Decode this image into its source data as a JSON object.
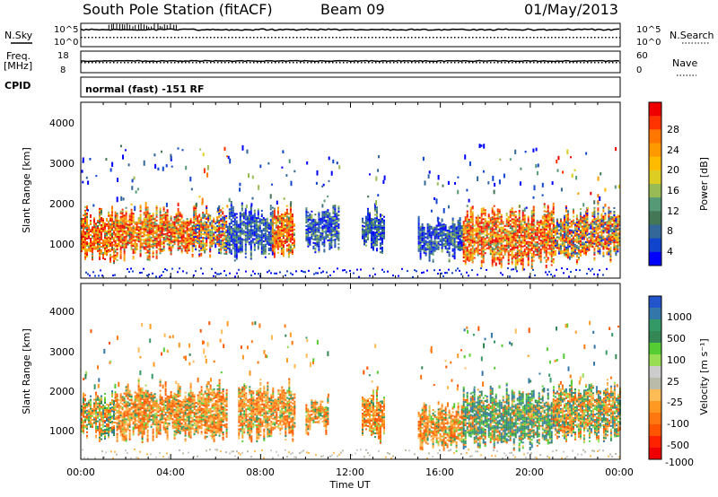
{
  "header": {
    "station": "South Pole Station (fitACF)",
    "beam": "Beam 09",
    "date": "01/May/2013"
  },
  "top_panels": {
    "nsky_label": "N.Sky",
    "nsearch_label": "N.Search",
    "noise_ticks_left": [
      "10^5",
      "10^0"
    ],
    "noise_ticks_right": [
      "10^5",
      "10^0"
    ],
    "freq_label_1": "Freq.",
    "freq_label_2": "[MHz]",
    "freq_ticks": [
      "18",
      "8"
    ],
    "nave_label": "Nave",
    "nave_ticks": [
      "60",
      "0"
    ],
    "cpid_label": "CPID",
    "cpid_text": "normal (fast) -151 RF"
  },
  "power_panel": {
    "ylabel": "Slant Range [km]",
    "yticks": [
      "4000",
      "3000",
      "2000",
      "1000"
    ],
    "colorbar_label": "Power [dB]",
    "colorbar_ticks": [
      "28",
      "24",
      "20",
      "16",
      "12",
      "8",
      "4"
    ],
    "colorbar_colors": [
      "#ee0000",
      "#ff3300",
      "#ff7700",
      "#ff9900",
      "#ffbb00",
      "#ddcc22",
      "#99bb55",
      "#559977",
      "#447755",
      "#336699",
      "#1144cc",
      "#0000ff"
    ]
  },
  "velocity_panel": {
    "ylabel": "Slant Range [km]",
    "yticks": [
      "4000",
      "3000",
      "2000",
      "1000"
    ],
    "colorbar_label": "Velocity [m s⁻¹]",
    "colorbar_ticks": [
      "1000",
      "500",
      "100",
      "25",
      "-25",
      "-100",
      "-500",
      "-1000"
    ],
    "colorbar_colors": [
      "#2255cc",
      "#3377aa",
      "#339966",
      "#338855",
      "#55cc33",
      "#99dd55",
      "#cccccc",
      "#bbbbaa",
      "#ffbb55",
      "#ff9922",
      "#ff7711",
      "#ff5500",
      "#ff2200",
      "#ee0000"
    ]
  },
  "x_axis": {
    "ticks": [
      "00:00",
      "04:00",
      "08:00",
      "12:00",
      "16:00",
      "20:00",
      "00:00"
    ],
    "label": "Time UT"
  },
  "chart_data": {
    "type": "heatmap",
    "title": "South Pole Station (fitACF)",
    "subtitle": "Beam 09",
    "date": "01/May/2013",
    "x_unit": "UT hours",
    "xlim": [
      0,
      24
    ],
    "ylim": [
      180,
      4500
    ],
    "ylabel": "Slant Range [km]",
    "panels": [
      {
        "name": "Power [dB]",
        "scale": [
          0,
          30
        ],
        "blobs": [
          {
            "t0": 0.0,
            "t1": 1.5,
            "r0": 600,
            "r1": 1800,
            "level": "high"
          },
          {
            "t0": 1.5,
            "t1": 5.0,
            "r0": 700,
            "r1": 1900,
            "level": "high"
          },
          {
            "t0": 5.0,
            "t1": 6.5,
            "r0": 800,
            "r1": 1900,
            "level": "mid"
          },
          {
            "t0": 6.5,
            "t1": 8.5,
            "r0": 700,
            "r1": 1900,
            "level": "low"
          },
          {
            "t0": 8.5,
            "t1": 9.5,
            "r0": 700,
            "r1": 1900,
            "level": "high"
          },
          {
            "t0": 10.0,
            "t1": 11.5,
            "r0": 900,
            "r1": 1900,
            "level": "low"
          },
          {
            "t0": 12.5,
            "t1": 13.5,
            "r0": 900,
            "r1": 1900,
            "level": "low"
          },
          {
            "t0": 15.0,
            "t1": 17.0,
            "r0": 700,
            "r1": 1600,
            "level": "low"
          },
          {
            "t0": 17.0,
            "t1": 21.0,
            "r0": 500,
            "r1": 1900,
            "level": "high"
          },
          {
            "t0": 21.0,
            "t1": 22.5,
            "r0": 600,
            "r1": 1800,
            "level": "mid"
          },
          {
            "t0": 22.5,
            "t1": 24.0,
            "r0": 700,
            "r1": 1900,
            "level": "mid"
          }
        ]
      },
      {
        "name": "Velocity [m s⁻¹]",
        "scale": [
          -1000,
          1000
        ],
        "blobs": [
          {
            "t0": 0.0,
            "t1": 1.5,
            "r0": 700,
            "r1": 1800,
            "level": "mixed"
          },
          {
            "t0": 1.5,
            "t1": 6.5,
            "r0": 700,
            "r1": 2000,
            "level": "negative"
          },
          {
            "t0": 7.0,
            "t1": 9.5,
            "r0": 700,
            "r1": 2000,
            "level": "negative"
          },
          {
            "t0": 10.0,
            "t1": 11.0,
            "r0": 900,
            "r1": 1600,
            "level": "negative"
          },
          {
            "t0": 12.5,
            "t1": 13.5,
            "r0": 700,
            "r1": 1800,
            "level": "negative"
          },
          {
            "t0": 15.0,
            "t1": 17.0,
            "r0": 500,
            "r1": 1500,
            "level": "negative"
          },
          {
            "t0": 17.0,
            "t1": 21.0,
            "r0": 500,
            "r1": 1900,
            "level": "positive"
          },
          {
            "t0": 21.0,
            "t1": 24.0,
            "r0": 700,
            "r1": 2000,
            "level": "mixed"
          }
        ]
      }
    ]
  }
}
